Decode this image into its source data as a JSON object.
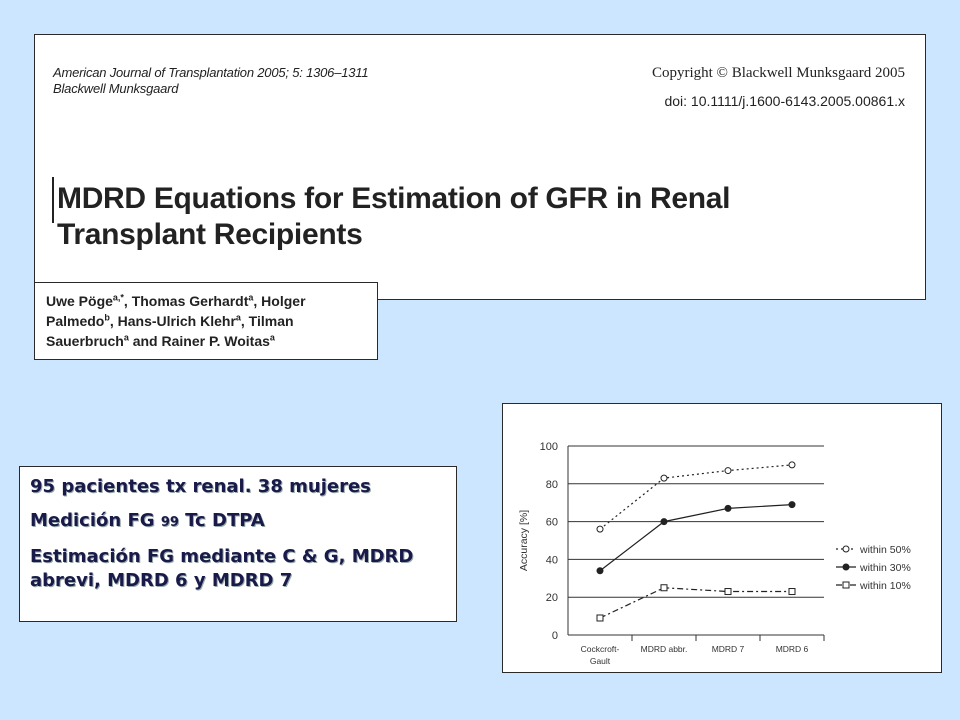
{
  "paper": {
    "journal_line1": "American Journal of Transplantation 2005; 5: 1306–1311",
    "journal_line2": "Blackwell Munksgaard",
    "copyright": "Copyright © Blackwell Munksgaard 2005",
    "doi": "doi: 10.1111/j.1600-6143.2005.00861.x",
    "title_line1": "MDRD Equations for Estimation of GFR in Renal",
    "title_line2": "Transplant Recipients"
  },
  "authors": {
    "a1": "Uwe Pöge",
    "a1_sup": "a,*",
    "a2": ", Thomas Gerhardt",
    "a2_sup": "a",
    "a3": ", Holger Palmedo",
    "a3_sup": "b",
    "a4": ", Hans-Ulrich Klehr",
    "a4_sup": "a",
    "a5": ", Tilman Sauerbruch",
    "a5_sup": "a",
    "a6": " and Rainer P. Woitas",
    "a6_sup": "a"
  },
  "info": {
    "line1": "95 pacientes tx renal. 38 mujeres",
    "line2_a": "Medición FG ",
    "line2_b": "99",
    "line2_c": " Tc DTPA",
    "line3": "Estimación FG mediante C & G, MDRD abrevi, MDRD 6 y MDRD 7"
  },
  "chart_data": {
    "type": "line",
    "categories": [
      "Cockcroft-Gault",
      "MDRD abbr.",
      "MDRD 7",
      "MDRD 6"
    ],
    "ylabel": "Accuracy [%]",
    "ylim": [
      0,
      100
    ],
    "yticks": [
      0,
      20,
      40,
      60,
      80,
      100
    ],
    "grid": true,
    "legend_position": "right",
    "series": [
      {
        "name": "within 50%",
        "values": [
          56,
          83,
          87,
          90
        ],
        "marker": "open-circle",
        "line": "dotted",
        "color": "#222222"
      },
      {
        "name": "within 30%",
        "values": [
          34,
          60,
          67,
          69
        ],
        "marker": "filled-circle",
        "line": "solid",
        "color": "#222222"
      },
      {
        "name": "within 10%",
        "values": [
          9,
          25,
          23,
          23
        ],
        "marker": "open-square",
        "line": "dash-dot",
        "color": "#222222"
      }
    ]
  }
}
